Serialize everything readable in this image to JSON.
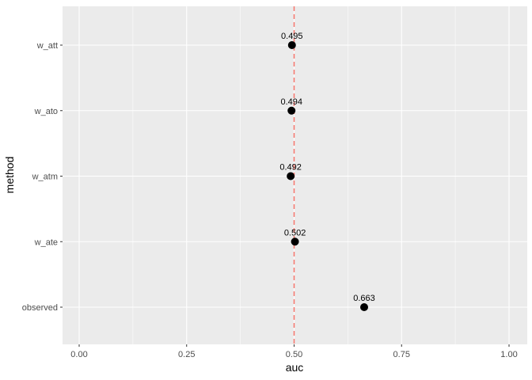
{
  "chart_data": {
    "type": "scatter",
    "xlabel": "auc",
    "ylabel": "method",
    "xlim": [
      0,
      1
    ],
    "x_ticks": [
      "0.00",
      "0.25",
      "0.50",
      "0.75",
      "1.00"
    ],
    "x_tick_values": [
      0,
      0.25,
      0.5,
      0.75,
      1
    ],
    "categories": [
      "observed",
      "w_ate",
      "w_atm",
      "w_ato",
      "w_att"
    ],
    "values": [
      0.663,
      0.502,
      0.492,
      0.494,
      0.495
    ],
    "labels": [
      "0.663",
      "0.502",
      "0.492",
      "0.494",
      "0.495"
    ],
    "reference_line": {
      "x": 0.5,
      "style": "dashed",
      "color": "#F8766D"
    },
    "grid": true,
    "panel_color": "#EBEBEB",
    "point_color": "#000000"
  }
}
